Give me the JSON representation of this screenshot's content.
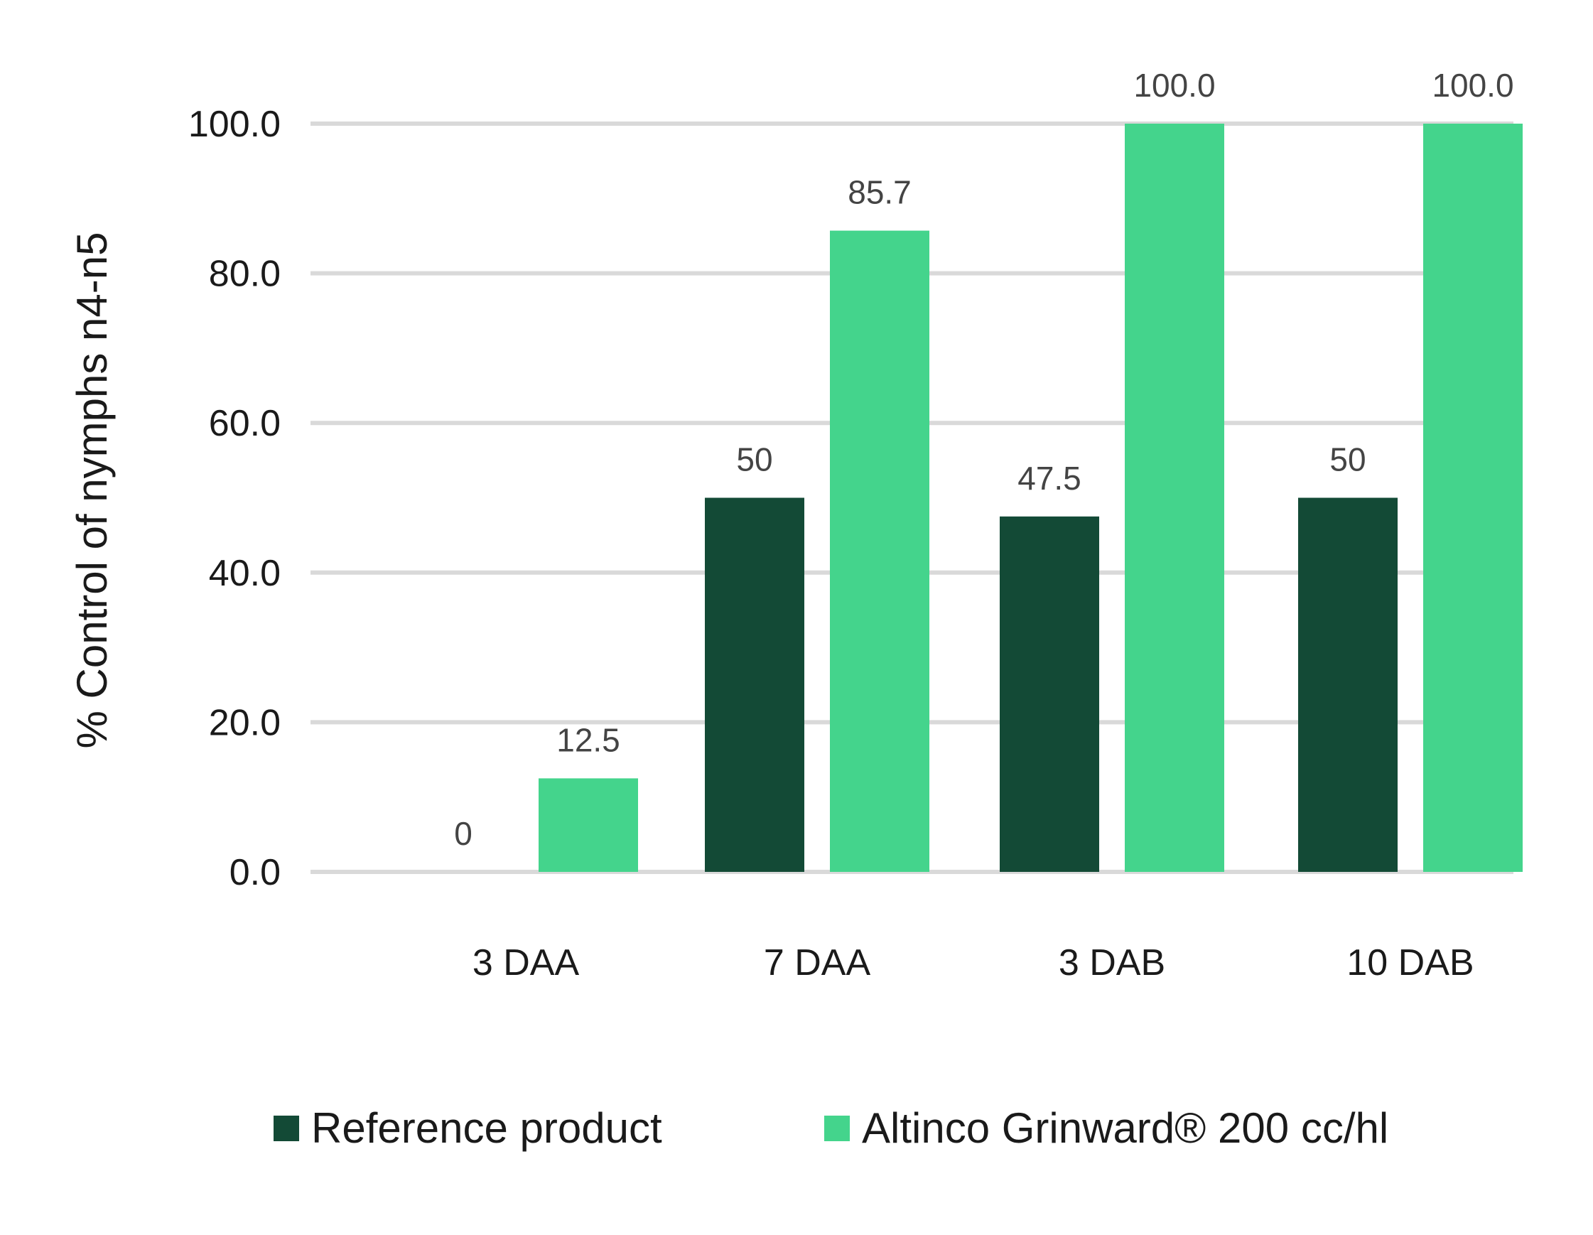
{
  "chart_data": {
    "type": "bar",
    "categories": [
      "3 DAA",
      "7 DAA",
      "3 DAB",
      "10 DAB"
    ],
    "series": [
      {
        "name": "Reference product",
        "values": [
          0,
          50,
          47.5,
          50
        ],
        "labels": [
          "0",
          "50",
          "47.5",
          "50"
        ],
        "color": "#134a36"
      },
      {
        "name": "Altinco Grinward® 200 cc/hl",
        "values": [
          12.5,
          85.7,
          100,
          100
        ],
        "labels": [
          "12.5",
          "85.7",
          "100.0",
          "100.0"
        ],
        "color": "#44d48c"
      }
    ],
    "ylabel": "% Control of nymphs n4-n5",
    "xlabel": "",
    "title": "",
    "ylim": [
      0,
      100
    ],
    "yticks": [
      "0.0",
      "20.0",
      "40.0",
      "60.0",
      "80.0",
      "100.0"
    ],
    "grid": true,
    "grid_color": "#d9d9d9",
    "legend_position": "bottom"
  }
}
